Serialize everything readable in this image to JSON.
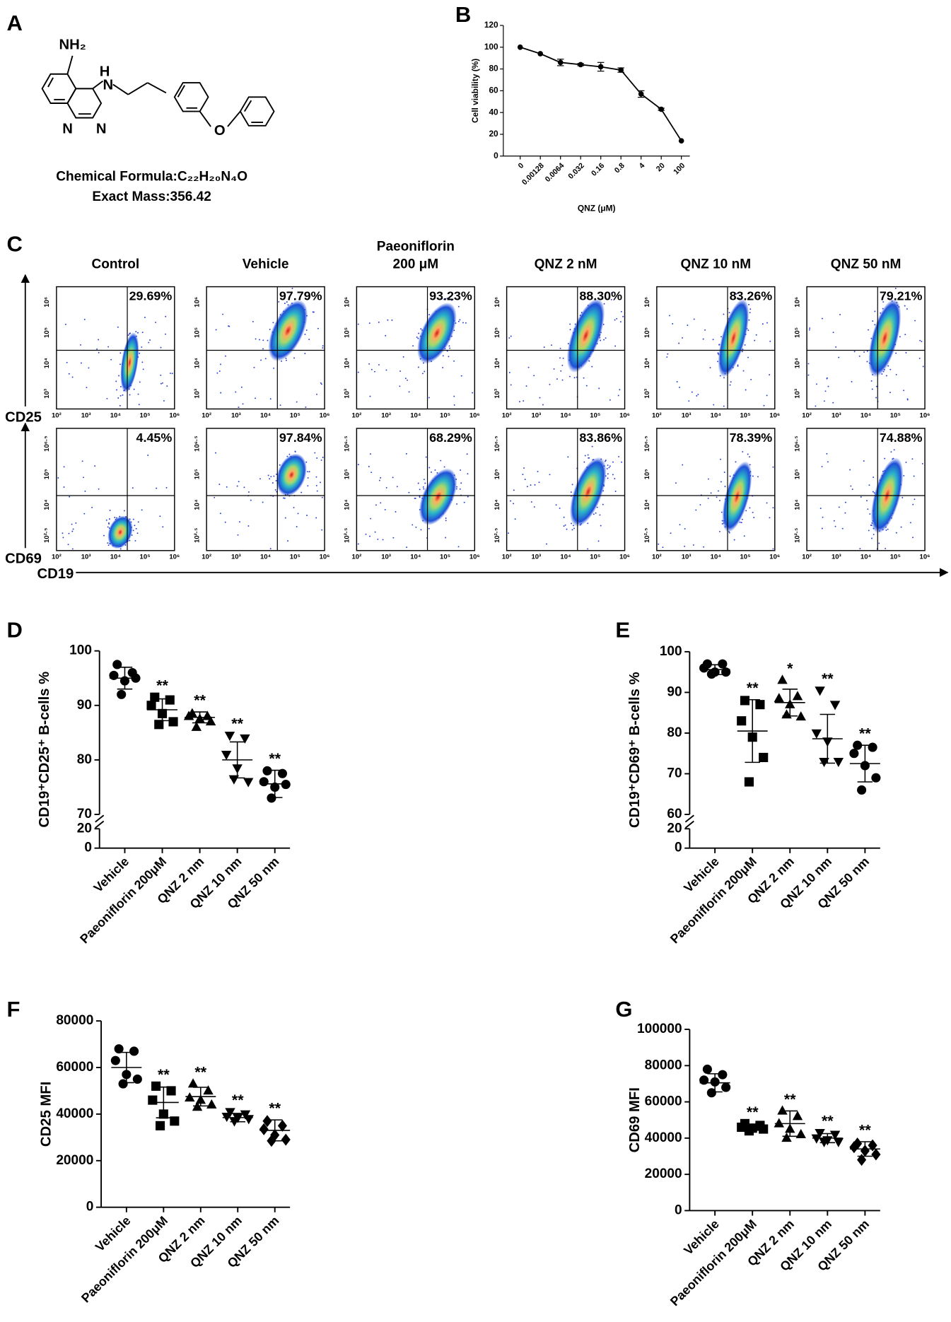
{
  "panel_labels": [
    "A",
    "B",
    "C",
    "D",
    "E",
    "F",
    "G"
  ],
  "structure": {
    "nh2": "NH₂",
    "h": "H",
    "n_amine": "N",
    "n1": "N",
    "n3": "N",
    "o": "O",
    "formula": "Chemical Formula:C₂₂H₂₀N₄O",
    "mass": "Exact Mass:356.42"
  },
  "flow": {
    "columns": [
      [
        "Control"
      ],
      [
        "Vehicle"
      ],
      [
        "Paeoniflorin",
        "200 μM"
      ],
      [
        "QNZ 2 nM"
      ],
      [
        "QNZ 10 nM"
      ],
      [
        "QNZ 50 nM"
      ]
    ],
    "row_labels": [
      "CD25",
      "CD69"
    ],
    "x_label": "CD19",
    "percentages": [
      [
        "29.69%",
        "97.79%",
        "93.23%",
        "88.30%",
        "83.26%",
        "79.21%"
      ],
      [
        "4.45%",
        "97.84%",
        "68.29%",
        "83.86%",
        "78.39%",
        "74.88%"
      ]
    ],
    "x_ticks": [
      "10²",
      "10³",
      "10⁴",
      "10⁵",
      "10⁶"
    ],
    "y_ticks": [
      [
        "10³",
        "10⁴",
        "10⁵",
        "10⁶"
      ],
      [
        "10²·⁵",
        "10⁴",
        "10⁵",
        "10⁶·⁵"
      ]
    ]
  },
  "chart_data": [
    {
      "type": "line",
      "categories": [
        "0",
        "0.00128",
        "0.0064",
        "0.032",
        "0.16",
        "0.8",
        "4",
        "20",
        "100"
      ],
      "values": [
        100,
        94,
        86,
        84,
        82,
        79,
        57,
        43,
        14
      ],
      "errors": [
        0,
        0,
        3,
        1,
        4,
        2,
        3,
        1,
        0
      ],
      "xlabel": "QNZ (μM)",
      "ylabel": "Cell viability (%)",
      "ylim": [
        0,
        120
      ],
      "yticks": [
        0,
        20,
        40,
        60,
        80,
        100,
        120
      ],
      "color": "#000000"
    },
    {
      "type": "dotplot",
      "categories": [
        "Vehicle",
        "Paeoniflorin 200μM",
        "QNZ 2 nm",
        "QNZ 10 nm",
        "QNZ 50 nm"
      ],
      "points": [
        [
          97.5,
          96,
          95.5,
          94.5,
          95,
          92
        ],
        [
          91.5,
          91,
          90,
          88.5,
          87,
          86.5
        ],
        [
          88.5,
          88,
          88,
          87.5,
          87,
          86
        ],
        [
          84.5,
          84,
          81,
          78.5,
          76,
          76.5
        ],
        [
          78,
          77.5,
          76,
          75,
          75.5,
          73
        ]
      ],
      "means": [
        95,
        89.2,
        87.8,
        80,
        75.6
      ],
      "sds": [
        2,
        2,
        1,
        3.3,
        2.5
      ],
      "annotations": [
        null,
        "**",
        "**",
        "**",
        "**"
      ],
      "markers": [
        "circle",
        "square",
        "triangle",
        "triangle-down",
        "circle"
      ],
      "ylabel": "CD19⁺CD25⁺ B-cells %",
      "ylim": [
        0,
        100
      ],
      "yticks": [
        0,
        20,
        70,
        80,
        90,
        100
      ],
      "axis_break": [
        20,
        70
      ],
      "color": "#000000"
    },
    {
      "type": "dotplot",
      "categories": [
        "Vehicle",
        "Paeoniflorin 200μM",
        "QNZ 2 nm",
        "QNZ 10 nm",
        "QNZ 50 nm"
      ],
      "points": [
        [
          97,
          97,
          96,
          95,
          95,
          94.5
        ],
        [
          88,
          87,
          83,
          79,
          74,
          68
        ],
        [
          93,
          89,
          88.5,
          87,
          84,
          84.5
        ],
        [
          90.5,
          87,
          80,
          78,
          73,
          73
        ],
        [
          77,
          76.5,
          75,
          72,
          69,
          66
        ]
      ],
      "means": [
        95.6,
        80.5,
        87.5,
        78.6,
        72.5
      ],
      "sds": [
        1.2,
        7.7,
        3.3,
        6,
        4.5
      ],
      "annotations": [
        null,
        "**",
        "*",
        "**",
        "**"
      ],
      "markers": [
        "circle",
        "square",
        "triangle",
        "triangle-down",
        "circle"
      ],
      "ylabel": "CD19⁺CD69⁺ B-cells %",
      "ylim": [
        0,
        100
      ],
      "yticks": [
        0,
        20,
        60,
        70,
        80,
        90,
        100
      ],
      "axis_break": [
        20,
        60
      ],
      "color": "#000000"
    },
    {
      "type": "dotplot",
      "categories": [
        "Vehicle",
        "Paeoniflorin 200μM",
        "QNZ 2 nm",
        "QNZ 10 nm",
        "QNZ 50 nm"
      ],
      "points": [
        [
          68000,
          67000,
          63000,
          57000,
          55000,
          53000
        ],
        [
          52000,
          50000,
          46000,
          40000,
          37000,
          35000
        ],
        [
          53000,
          50000,
          47000,
          46000,
          44000,
          43000
        ],
        [
          41000,
          40000,
          39000,
          38500,
          38000,
          37000
        ],
        [
          37000,
          35000,
          33500,
          31000,
          29000,
          28500
        ]
      ],
      "means": [
        60000,
        45000,
        47500,
        38500,
        33000
      ],
      "sds": [
        6500,
        6600,
        4000,
        1800,
        4500
      ],
      "annotations": [
        null,
        "**",
        "**",
        "**",
        "**"
      ],
      "markers": [
        "circle",
        "square",
        "triangle",
        "triangle-down",
        "diamond"
      ],
      "ylabel": "CD25 MFI",
      "ylim": [
        0,
        80000
      ],
      "yticks": [
        0,
        20000,
        40000,
        60000,
        80000
      ],
      "color": "#000000"
    },
    {
      "type": "dotplot",
      "categories": [
        "Vehicle",
        "Paeoniflorin 200μM",
        "QNZ 2 nm",
        "QNZ 10 nm",
        "QNZ 50 nm"
      ],
      "points": [
        [
          78000,
          75000,
          72000,
          71000,
          68000,
          65000
        ],
        [
          48000,
          47000,
          46000,
          45500,
          45000,
          44000
        ],
        [
          55000,
          52000,
          48000,
          45000,
          42000,
          40000
        ],
        [
          43000,
          42000,
          40000,
          39000,
          38000,
          38000
        ],
        [
          37000,
          36000,
          35000,
          33000,
          31000,
          28000
        ]
      ],
      "means": [
        70500,
        46000,
        48000,
        40000,
        34000
      ],
      "sds": [
        5000,
        1700,
        7000,
        2500,
        4000
      ],
      "annotations": [
        null,
        "**",
        "**",
        "**",
        "**"
      ],
      "markers": [
        "circle",
        "square",
        "triangle",
        "triangle-down",
        "diamond"
      ],
      "ylabel": "CD69 MFI",
      "ylim": [
        0,
        100000
      ],
      "yticks": [
        0,
        20000,
        40000,
        60000,
        80000,
        100000
      ],
      "color": "#000000"
    }
  ]
}
